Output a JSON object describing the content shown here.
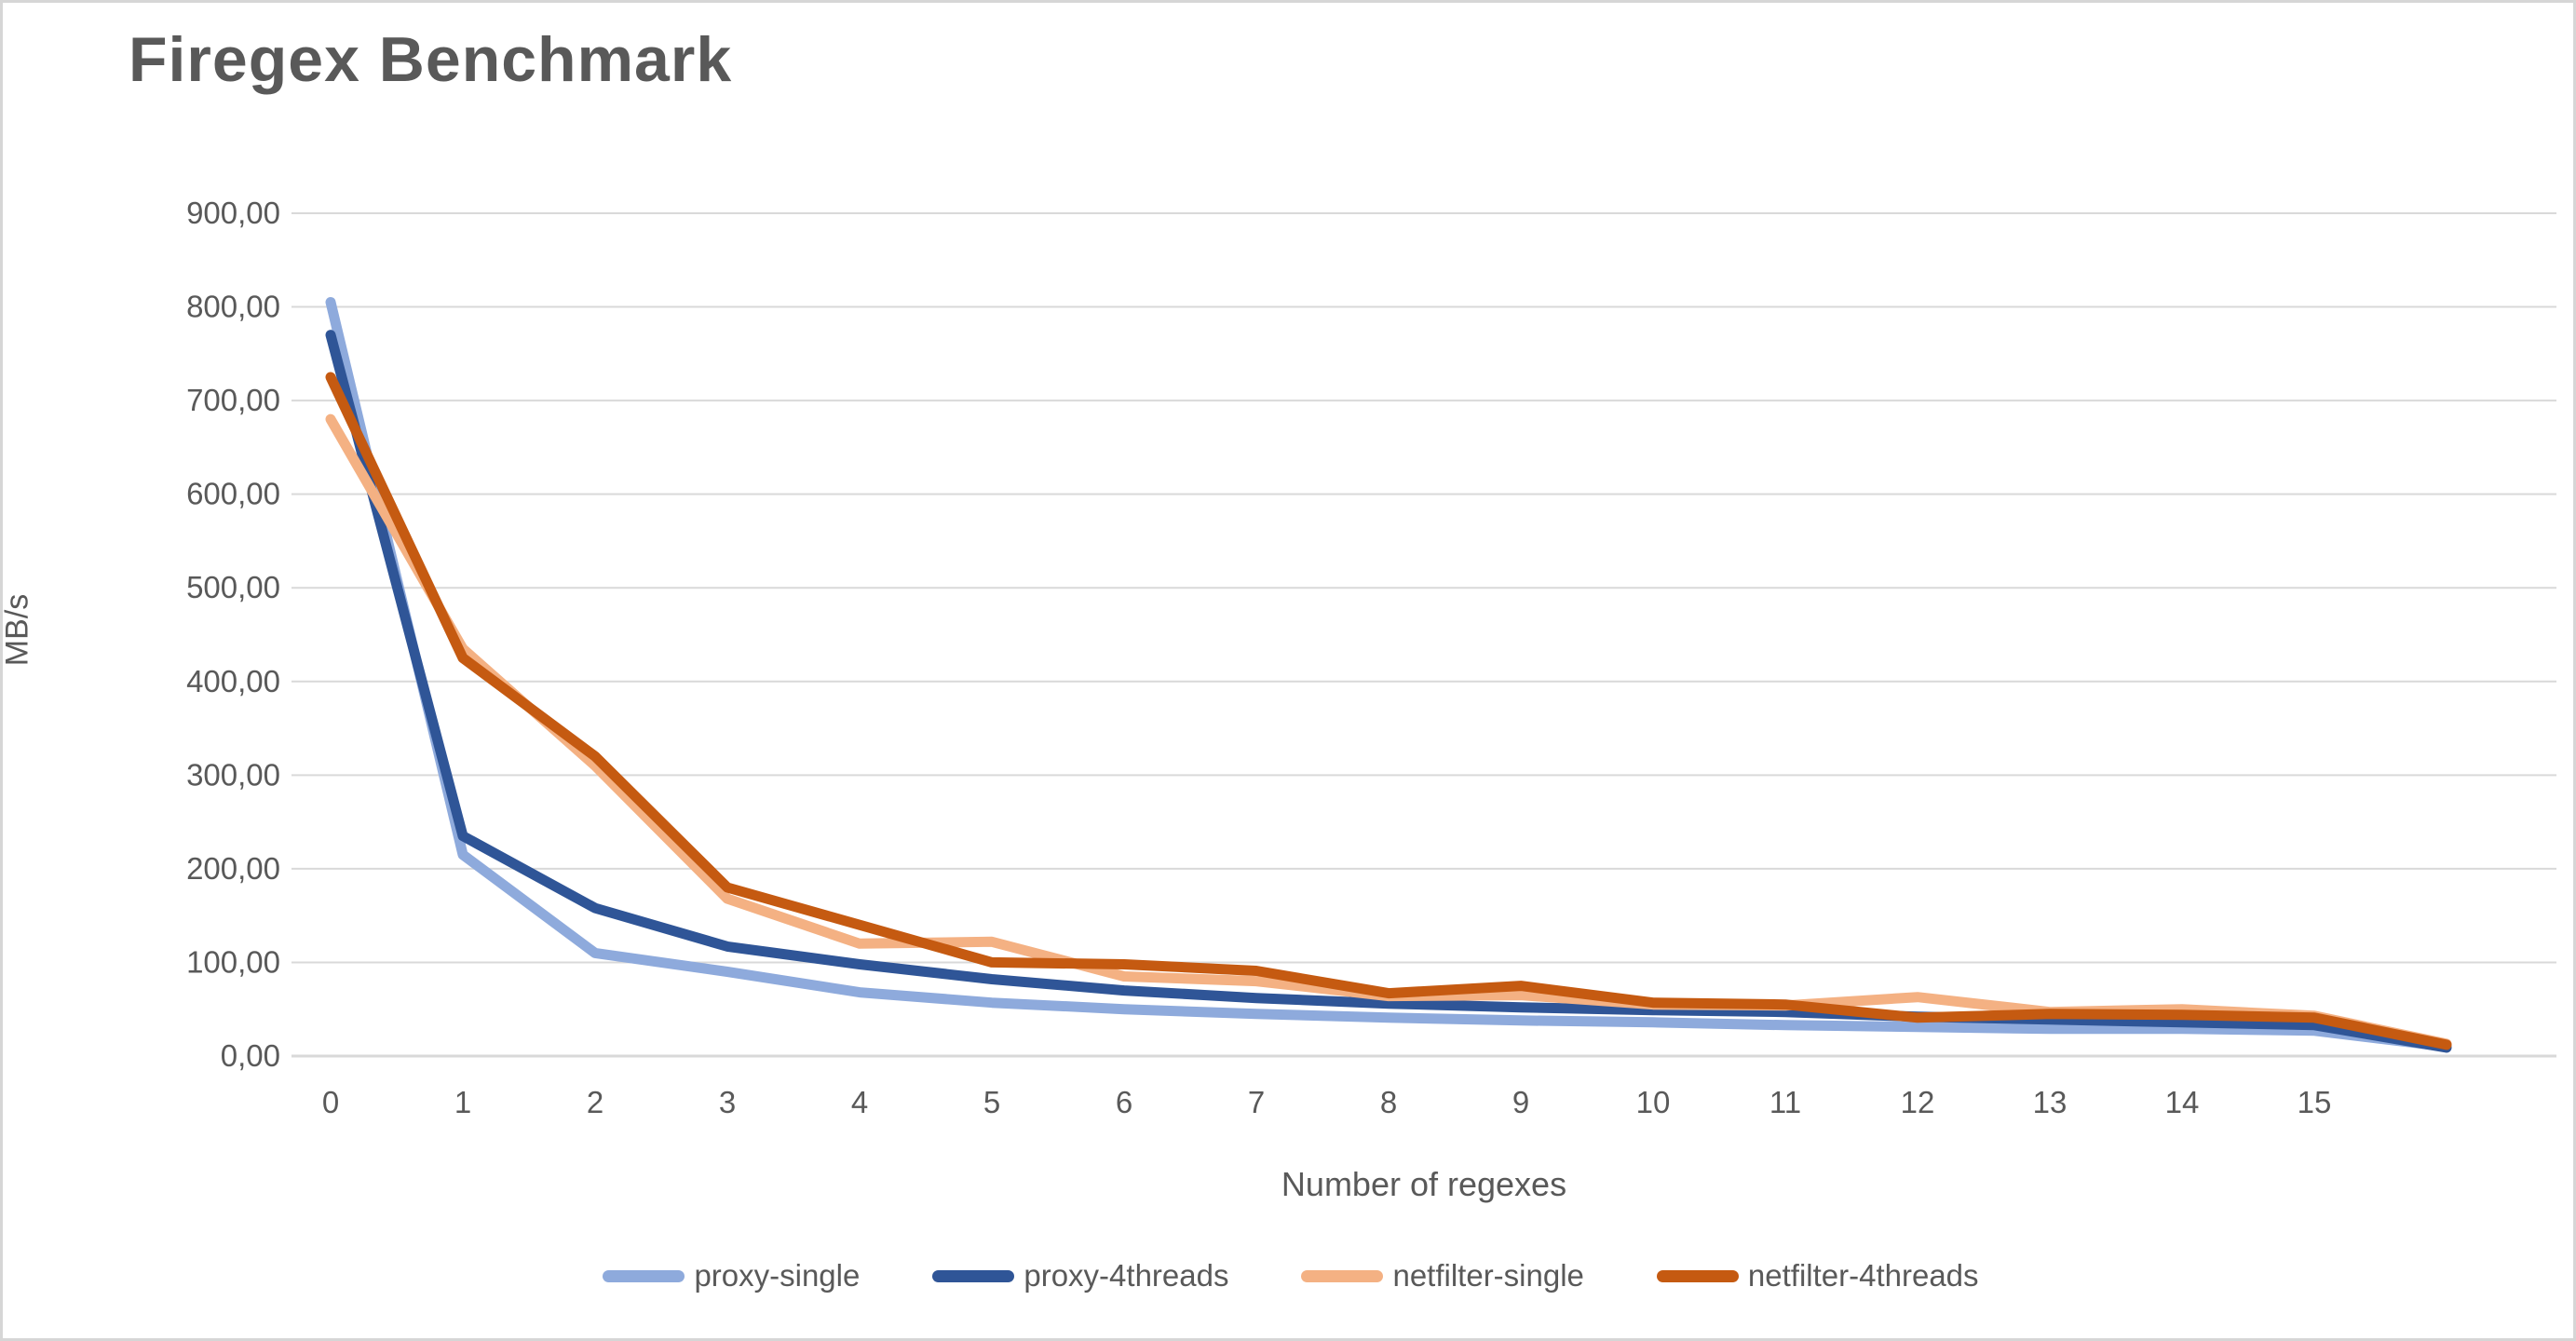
{
  "chart_data": {
    "type": "line",
    "title": "Firegex Benchmark",
    "xlabel": "Number of regexes",
    "ylabel": "MB/s",
    "x": [
      0,
      1,
      2,
      3,
      4,
      5,
      6,
      7,
      8,
      9,
      10,
      11,
      12,
      13,
      14,
      15,
      16
    ],
    "x_tick_labels": [
      "0",
      "1",
      "2",
      "3",
      "4",
      "5",
      "6",
      "7",
      "8",
      "9",
      "10",
      "11",
      "12",
      "13",
      "14",
      "15"
    ],
    "y_ticks": [
      0,
      100,
      200,
      300,
      400,
      500,
      600,
      700,
      800,
      900
    ],
    "y_tick_labels": [
      "0,00",
      "100,00",
      "200,00",
      "300,00",
      "400,00",
      "500,00",
      "600,00",
      "700,00",
      "800,00",
      "900,00"
    ],
    "ylim": [
      0,
      900
    ],
    "grid": true,
    "legend_position": "bottom",
    "series": [
      {
        "name": "proxy-single",
        "color": "#8EAADC",
        "values": [
          805,
          215,
          110,
          90,
          68,
          57,
          50,
          45,
          41,
          38,
          36,
          33,
          31,
          29,
          29,
          27,
          10
        ]
      },
      {
        "name": "proxy-4threads",
        "color": "#2F5597",
        "values": [
          770,
          235,
          158,
          117,
          98,
          82,
          70,
          62,
          56,
          52,
          49,
          47,
          42,
          39,
          36,
          33,
          9
        ]
      },
      {
        "name": "netfilter-single",
        "color": "#F4B183",
        "values": [
          680,
          435,
          310,
          168,
          120,
          122,
          85,
          80,
          64,
          65,
          55,
          54,
          63,
          47,
          50,
          43,
          13
        ]
      },
      {
        "name": "netfilter-4threads",
        "color": "#C55A11",
        "values": [
          725,
          425,
          320,
          180,
          140,
          100,
          98,
          91,
          67,
          75,
          57,
          55,
          41,
          45,
          44,
          41,
          12
        ]
      }
    ]
  },
  "colors": {
    "text": "#595959",
    "gridline": "#D9D9D9",
    "axis_line": "#D9D9D9",
    "background": "#FFFFFF",
    "border": "#D6D6D6"
  }
}
